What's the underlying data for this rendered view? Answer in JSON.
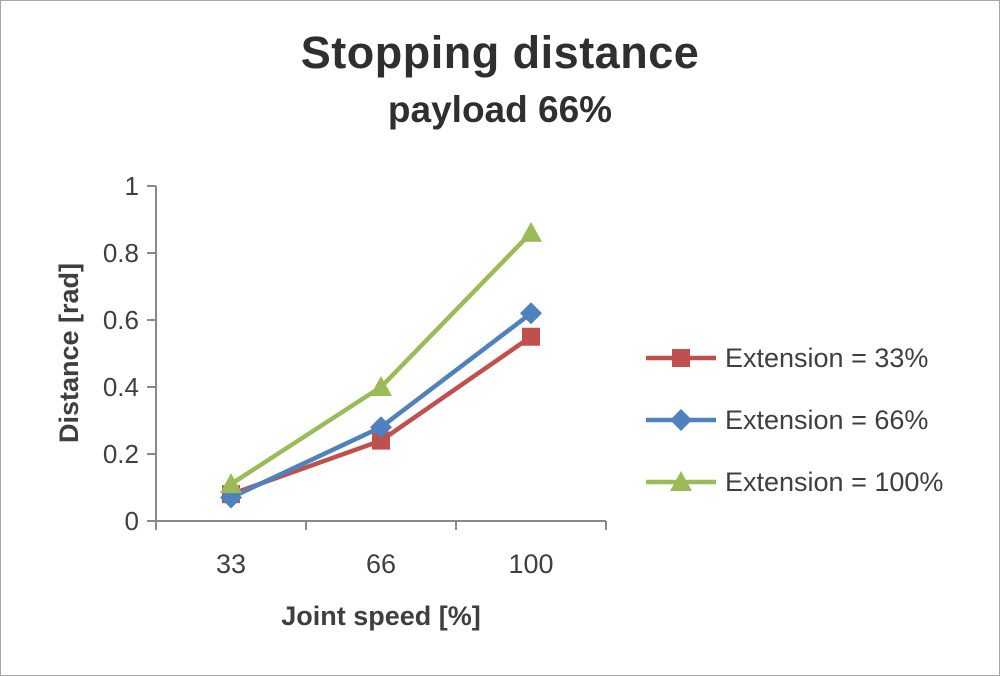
{
  "chart_data": {
    "type": "line",
    "title": "Stopping distance",
    "subtitle": "payload 66%",
    "xlabel": "Joint speed [%]",
    "ylabel": "Distance [rad]",
    "categories": [
      "33",
      "66",
      "100"
    ],
    "x_values": [
      33,
      66,
      100
    ],
    "series": [
      {
        "name": "Extension = 33%",
        "marker": "square",
        "color": "#C0504D",
        "values": [
          0.08,
          0.24,
          0.55
        ]
      },
      {
        "name": "Extension = 66%",
        "marker": "diamond",
        "color": "#4F81BD",
        "values": [
          0.07,
          0.28,
          0.62
        ]
      },
      {
        "name": "Extension = 100%",
        "marker": "triangle",
        "color": "#9BBB59",
        "values": [
          0.11,
          0.4,
          0.86
        ]
      }
    ],
    "ylim": [
      0,
      1
    ],
    "yticks": [
      0,
      0.2,
      0.4,
      0.6,
      0.8,
      1
    ],
    "ytick_labels": [
      "0",
      "0.2",
      "0.4",
      "0.6",
      "0.8",
      "1"
    ],
    "grid": false,
    "legend_position": "right",
    "axis_color": "#898989",
    "text_color": "#3f3f3f"
  }
}
